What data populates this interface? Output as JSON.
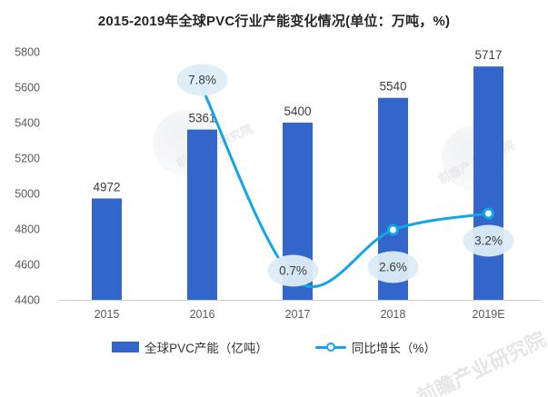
{
  "chart_data": {
    "type": "bar",
    "title": "2015-2019年全球PVC行业产能变化情况(单位：万吨，%)",
    "categories": [
      "2015",
      "2016",
      "2017",
      "2018",
      "2019E"
    ],
    "series": [
      {
        "name": "全球PVC产能（亿吨）",
        "type": "bar",
        "values": [
          4972,
          5361,
          5400,
          5540,
          5717
        ],
        "data_labels": [
          "4972",
          "5361",
          "5400",
          "5540",
          "5717"
        ]
      },
      {
        "name": "同比增长（%）",
        "type": "line",
        "values": [
          null,
          7.8,
          0.7,
          2.6,
          3.2
        ],
        "data_labels": [
          null,
          "7.8%",
          "0.7%",
          "2.6%",
          "3.2%"
        ]
      }
    ],
    "ylim": [
      4400,
      5800
    ],
    "y_ticks": [
      5800,
      5600,
      5400,
      5200,
      5000,
      4800,
      4600,
      4400
    ],
    "grid": false,
    "legend_position": "bottom"
  },
  "colors": {
    "bar": "#3366CB",
    "line": "#15A4E8",
    "bubble_fill": "#DDECF5",
    "axis_text": "#5a5a5a",
    "baseline": "#cccccc"
  },
  "watermark": {
    "brand": "前瞻产业研究院"
  }
}
